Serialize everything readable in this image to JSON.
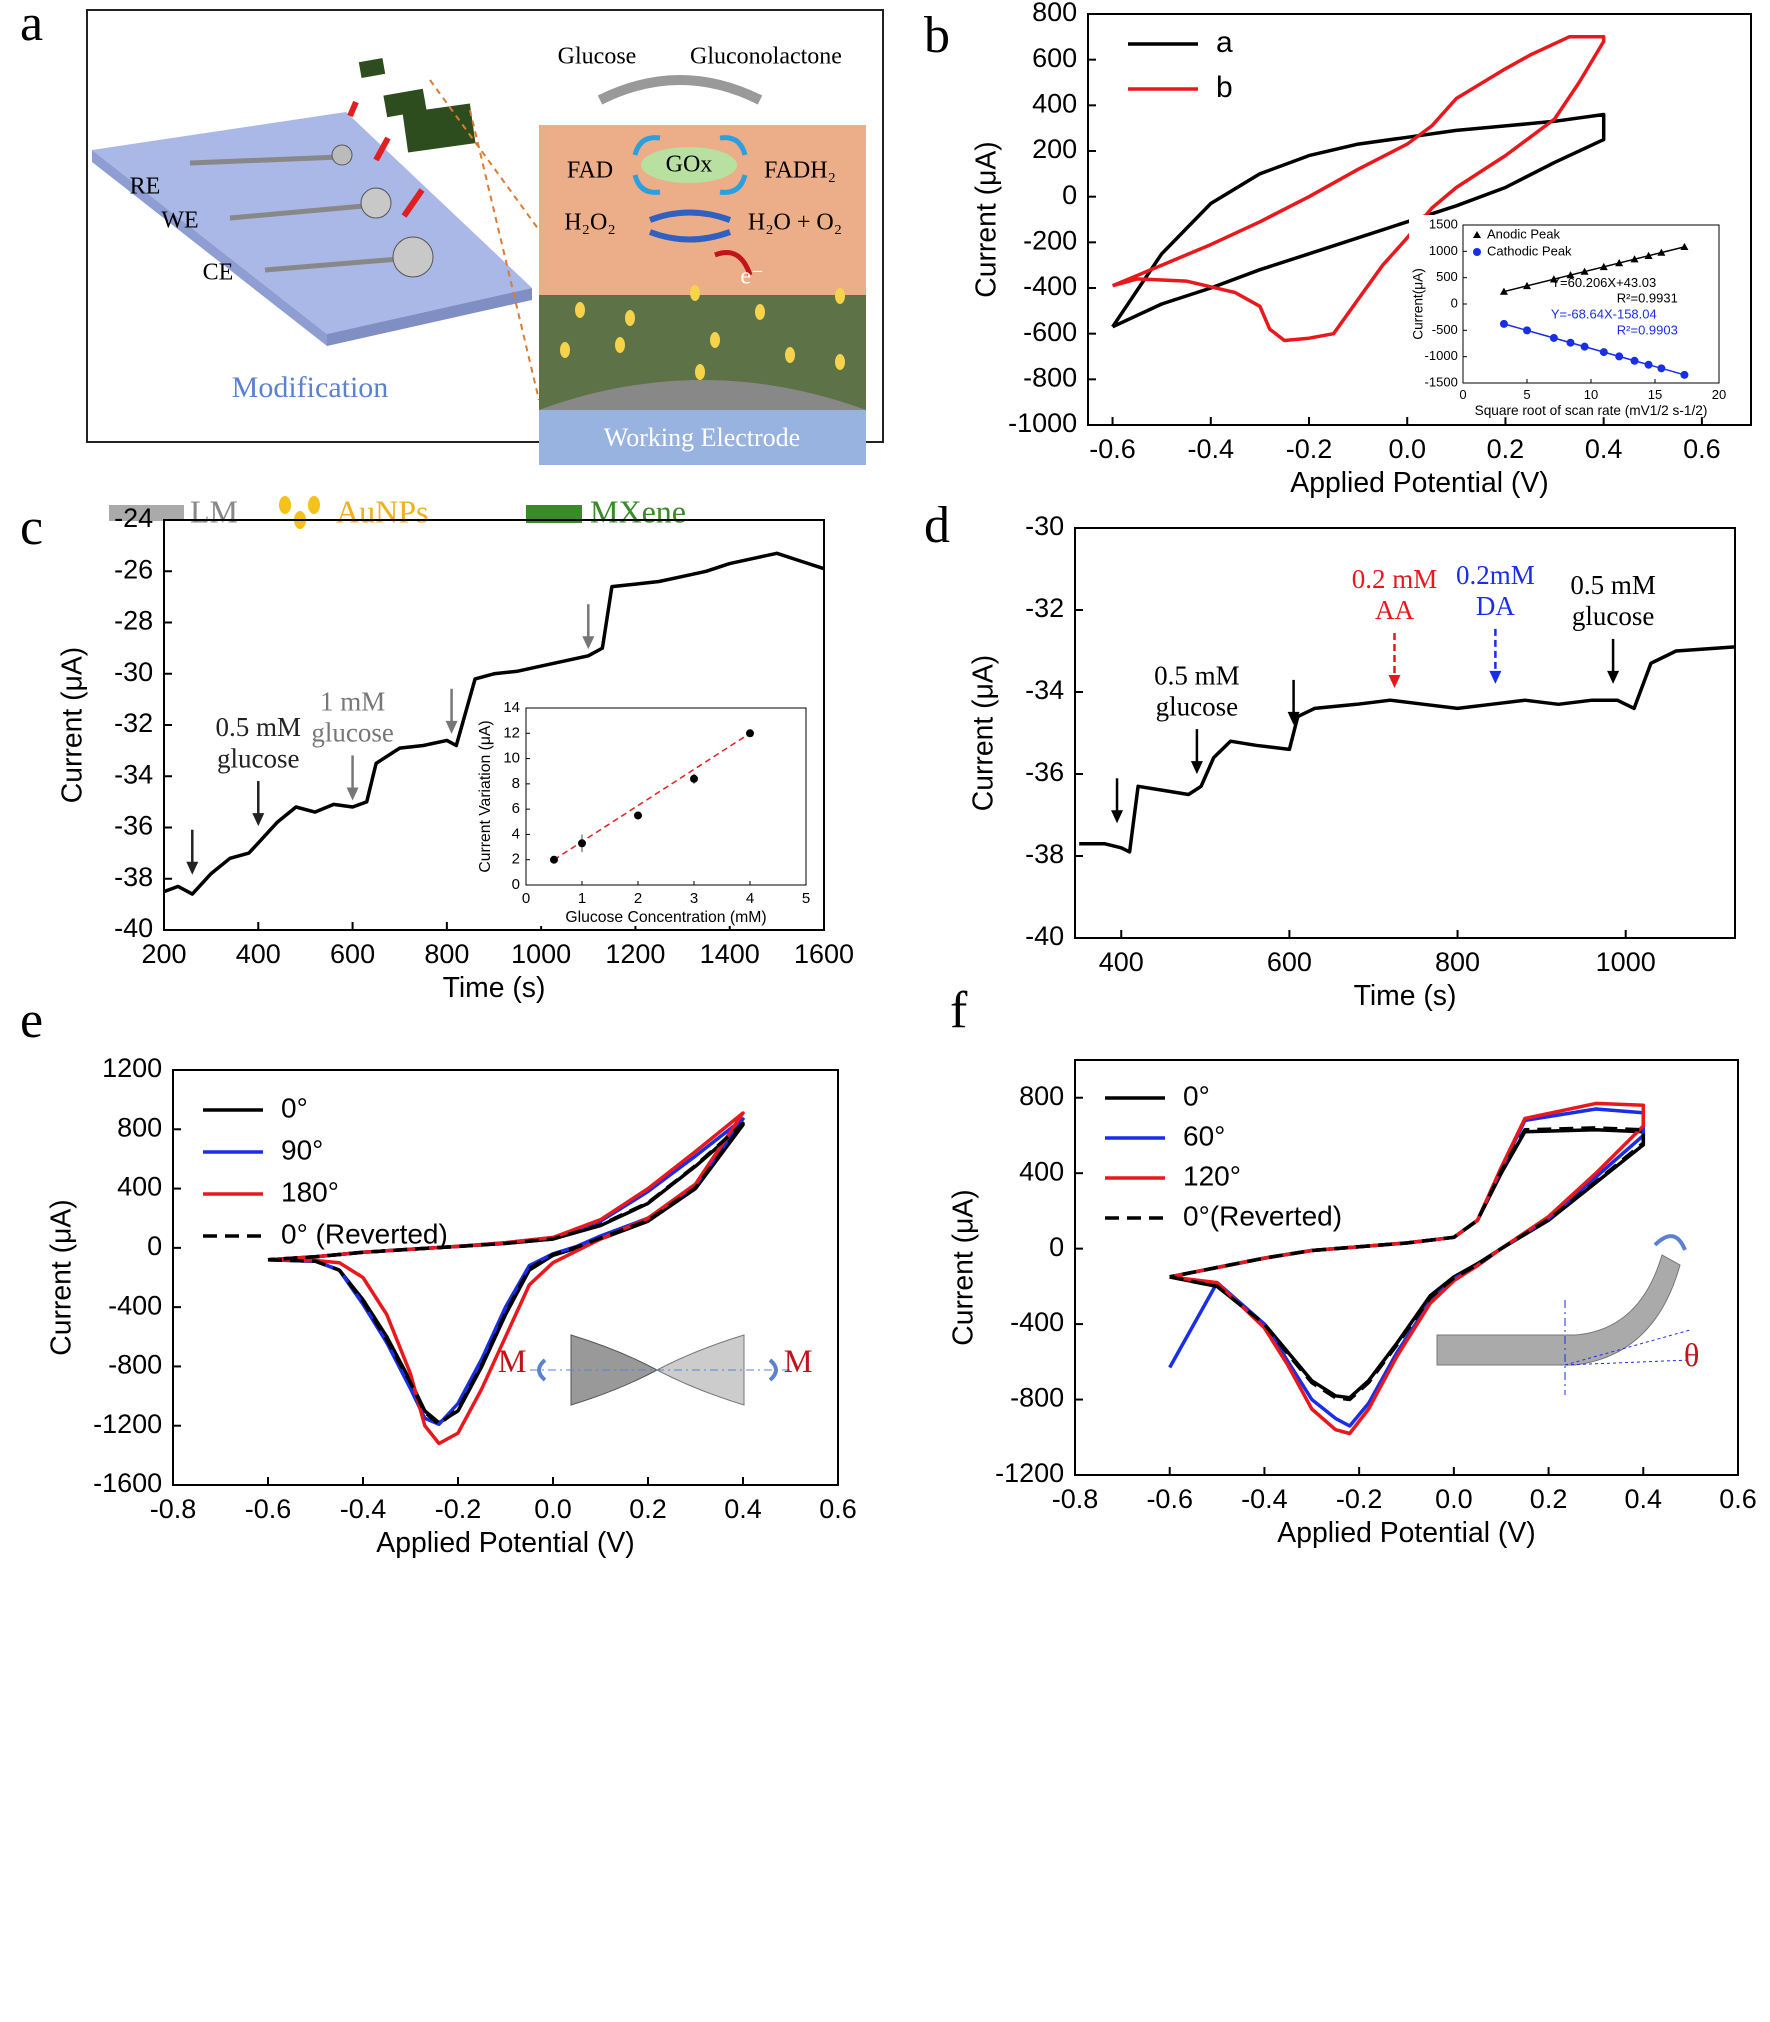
{
  "diagram": {
    "panel_label": "a",
    "reaction": {
      "glucose": "Glucose",
      "product": "Gluconolactone",
      "enzyme": "GOx",
      "fad": "FAD",
      "fadh2": "FADH₂",
      "h2o2": "H₂O₂",
      "h2o_o2": "H₂O + O₂",
      "electron": "e⁻"
    },
    "electrodes": [
      "RE",
      "WE",
      "CE"
    ],
    "step": "Modification",
    "electrode": "Working Electrode",
    "legend": [
      "LM",
      "AuNPs",
      "MXene"
    ]
  },
  "chart_data": [
    {
      "type": "line",
      "panel_label": "b",
      "xlabel": "Applied Potential (V)",
      "ylabel": "Current (μA)",
      "xlim": [
        -0.65,
        0.7
      ],
      "xticks": [
        -0.6,
        -0.4,
        -0.2,
        {
          "value": 0,
          "label": "0.0"
        },
        0.2,
        0.4,
        0.6
      ],
      "ylim": [
        -1000,
        800
      ],
      "yticks": [
        -1000,
        -800,
        -600,
        -400,
        -200,
        0,
        200,
        400,
        600,
        800
      ],
      "legend": "top-left",
      "series": [
        {
          "name": "a",
          "color": "#000000",
          "x": [
            -0.6,
            -0.5,
            -0.4,
            -0.3,
            -0.2,
            -0.1,
            0,
            0.1,
            0.2,
            0.3,
            0.4,
            0.4,
            0.3,
            0.2,
            0.1,
            0,
            -0.1,
            -0.2,
            -0.3,
            -0.4,
            -0.5,
            -0.6
          ],
          "values": [
            -570,
            -250,
            -30,
            100,
            180,
            230,
            260,
            290,
            310,
            330,
            360,
            250,
            150,
            40,
            -40,
            -110,
            -180,
            -250,
            -320,
            -400,
            -470,
            -570
          ]
        },
        {
          "name": "b",
          "color": "#e8181c",
          "x": [
            -0.6,
            -0.55,
            -0.45,
            -0.35,
            -0.3,
            -0.28,
            -0.25,
            -0.2,
            -0.15,
            -0.1,
            -0.05,
            0,
            0.05,
            0.1,
            0.2,
            0.3,
            0.35,
            0.4,
            0.4,
            0.33,
            0.25,
            0.2,
            0.1,
            0.05,
            0,
            -0.1,
            -0.2,
            -0.3,
            -0.4,
            -0.5,
            -0.6
          ],
          "values": [
            -390,
            -360,
            -370,
            -420,
            -480,
            -580,
            -630,
            -620,
            -600,
            -450,
            -300,
            -180,
            -50,
            40,
            180,
            340,
            500,
            680,
            700,
            700,
            620,
            560,
            430,
            310,
            230,
            120,
            0,
            -110,
            -210,
            -300,
            -390
          ]
        }
      ]
    },
    {
      "type": "scatter",
      "xlabel": "Square root of scan rate (mV1/2 s-1/2)",
      "ylabel": "Current(μA)",
      "xlim": [
        0,
        20
      ],
      "xticks": [
        0,
        5,
        10,
        15,
        20
      ],
      "ylim": [
        -1500,
        1500
      ],
      "yticks": [
        -1500,
        -1000,
        -500,
        0,
        500,
        1000,
        1500
      ],
      "legend": "top-left",
      "fit_line": {
        "style": "solid"
      },
      "x": [
        3.2,
        5,
        7.1,
        8.4,
        9.5,
        11,
        12.2,
        13.4,
        14.5,
        15.5,
        17.3
      ],
      "series": [
        {
          "name": "Anodic Peak",
          "color": "#000000",
          "marker": "triangle",
          "values": [
            236,
            344,
            470,
            549,
            615,
            705,
            778,
            850,
            916,
            976,
            1085
          ]
        },
        {
          "name": "Cathodic Peak",
          "color": "#1a2ee8",
          "marker": "circle",
          "values": [
            -378,
            -501,
            -645,
            -735,
            -810,
            -913,
            -995,
            -1078,
            -1153,
            -1222,
            -1345
          ]
        }
      ],
      "annotations": [
        {
          "text": "Y=60.206X+43.03",
          "color": "#000000"
        },
        {
          "text": "R²=0.9931",
          "color": "#000000"
        },
        {
          "text": "Y=-68.64X-158.04",
          "color": "#1a2ee8"
        },
        {
          "text": "R²=0.9903",
          "color": "#1a2ee8"
        }
      ]
    },
    {
      "type": "line",
      "panel_label": "c",
      "xlabel": "Time (s)",
      "ylabel": "Current (μA)",
      "xlim": [
        200,
        1600
      ],
      "xticks": [
        200,
        400,
        600,
        800,
        1000,
        1200,
        1400,
        1600
      ],
      "ylim": [
        -40,
        -24
      ],
      "yticks": [
        -40,
        -38,
        -36,
        -34,
        -32,
        -30,
        -28,
        -26,
        -24
      ],
      "x": [
        200,
        230,
        260,
        300,
        340,
        380,
        400,
        440,
        480,
        520,
        560,
        600,
        630,
        650,
        700,
        750,
        800,
        820,
        840,
        860,
        900,
        950,
        1000,
        1050,
        1100,
        1130,
        1150,
        1200,
        1250,
        1300,
        1350,
        1400,
        1450,
        1500,
        1550,
        1600
      ],
      "series": [
        {
          "color": "#000000",
          "values": [
            -38.5,
            -38.3,
            -38.6,
            -37.8,
            -37.2,
            -37,
            -36.6,
            -35.8,
            -35.2,
            -35.4,
            -35.1,
            -35.2,
            -35,
            -33.5,
            -32.9,
            -32.8,
            -32.6,
            -32.8,
            -31.5,
            -30.2,
            -30,
            -29.9,
            -29.7,
            -29.5,
            -29.3,
            -29,
            -26.6,
            -26.5,
            -26.4,
            -26.2,
            -26,
            -25.7,
            -25.5,
            -25.3,
            -25.6,
            -25.9
          ]
        }
      ],
      "arrows": [
        {
          "x": 260,
          "y": -38,
          "color": "#222222"
        },
        {
          "x": 400,
          "y": -36.1,
          "color": "#222222",
          "label": [
            "0.5 mM",
            "glucose"
          ]
        },
        {
          "x": 600,
          "y": -35.1,
          "color": "#777777",
          "label": [
            "1 mM",
            "glucose"
          ]
        },
        {
          "x": 810,
          "y": -32.5,
          "color": "#777777"
        },
        {
          "x": 1100,
          "y": -29.2,
          "color": "#777777"
        }
      ]
    },
    {
      "type": "scatter",
      "xlabel": "Glucose Concentration (mM)",
      "ylabel": "Current Variation (μA)",
      "xlim": [
        0,
        5
      ],
      "xticks": [
        0,
        1,
        2,
        3,
        4,
        5
      ],
      "ylim": [
        0,
        14
      ],
      "yticks": [
        0,
        2,
        4,
        6,
        8,
        10,
        12,
        14
      ],
      "fit_line": {
        "color": "#e02020",
        "style": "dashed"
      },
      "x": [
        0.5,
        1,
        2,
        3,
        4
      ],
      "series": [
        {
          "color": "#000000",
          "marker": "circle",
          "values": [
            2,
            3.3,
            5.5,
            8.4,
            12
          ],
          "errors": [
            0.3,
            0.7,
            0.1,
            0.4,
            0.1
          ]
        }
      ]
    },
    {
      "type": "line",
      "panel_label": "d",
      "xlabel": "Time (s)",
      "ylabel": "Current (μA)",
      "xlim": [
        345,
        1130
      ],
      "xticks": [
        400,
        600,
        800,
        1000
      ],
      "ylim": [
        -40,
        -30
      ],
      "yticks": [
        -40,
        -38,
        -36,
        -34,
        -32,
        -30
      ],
      "x": [
        350,
        380,
        400,
        410,
        420,
        450,
        480,
        495,
        510,
        530,
        560,
        600,
        610,
        630,
        680,
        720,
        760,
        800,
        840,
        880,
        920,
        960,
        990,
        1010,
        1030,
        1060,
        1130
      ],
      "series": [
        {
          "color": "#000000",
          "values": [
            -37.7,
            -37.7,
            -37.8,
            -37.9,
            -36.3,
            -36.4,
            -36.5,
            -36.3,
            -35.6,
            -35.2,
            -35.3,
            -35.4,
            -34.6,
            -34.4,
            -34.3,
            -34.2,
            -34.3,
            -34.4,
            -34.3,
            -34.2,
            -34.3,
            -34.2,
            -34.2,
            -34.4,
            -33.3,
            -33,
            -32.9
          ]
        }
      ],
      "arrows": [
        {
          "x": 395,
          "y": -37.3,
          "color": "#000000"
        },
        {
          "x": 490,
          "y": -36.1,
          "color": "#000000",
          "label": [
            "0.5 mM",
            "glucose"
          ]
        },
        {
          "x": 605,
          "y": -34.9,
          "color": "#000000"
        },
        {
          "x": 725,
          "y": -34,
          "color": "#e8181c",
          "style": "dashed",
          "label": [
            "0.2 mM",
            "AA"
          ]
        },
        {
          "x": 845,
          "y": -33.9,
          "color": "#1a2ee8",
          "style": "dashed",
          "label": [
            "0.2mM",
            "DA"
          ]
        },
        {
          "x": 985,
          "y": -33.9,
          "color": "#000000",
          "label": [
            "0.5 mM",
            "glucose"
          ]
        }
      ]
    },
    {
      "type": "line",
      "panel_label": "e",
      "xlabel": "Applied Potential (V)",
      "ylabel": "Current (μA)",
      "xlim": [
        -0.8,
        0.6
      ],
      "xticks": [
        -0.8,
        -0.6,
        -0.4,
        -0.2,
        {
          "value": 0,
          "label": "0.0"
        },
        0.2,
        0.4,
        0.6
      ],
      "ylim": [
        -1600,
        1200
      ],
      "yticks": [
        -1600,
        -1200,
        -800,
        -400,
        0,
        400,
        800,
        1200
      ],
      "legend": "top-left",
      "x": [
        -0.6,
        -0.5,
        -0.45,
        -0.4,
        -0.35,
        -0.3,
        -0.27,
        -0.24,
        -0.2,
        -0.15,
        -0.1,
        -0.05,
        0,
        0.05,
        0.1,
        0.2,
        0.3,
        0.4,
        0.4,
        0.3,
        0.2,
        0.1,
        0,
        -0.1,
        -0.2,
        -0.3,
        -0.4,
        -0.5,
        -0.6
      ],
      "series": [
        {
          "name": "0°",
          "color": "#000000",
          "values": [
            -80,
            -90,
            -150,
            -350,
            -600,
            -900,
            -1100,
            -1180,
            -1100,
            -800,
            -450,
            -150,
            -50,
            0,
            60,
            180,
            400,
            830,
            830,
            550,
            300,
            150,
            60,
            30,
            10,
            -10,
            -30,
            -60,
            -80
          ]
        },
        {
          "name": "90°",
          "color": "#1a2ee8",
          "values": [
            -80,
            -90,
            -150,
            -380,
            -640,
            -950,
            -1150,
            -1190,
            -1050,
            -750,
            -400,
            -120,
            -40,
            10,
            80,
            200,
            420,
            870,
            870,
            620,
            380,
            180,
            70,
            35,
            10,
            -10,
            -30,
            -60,
            -80
          ]
        },
        {
          "name": "180°",
          "color": "#e8181c",
          "values": [
            -80,
            -85,
            -100,
            -200,
            -450,
            -850,
            -1200,
            -1320,
            -1250,
            -950,
            -600,
            -250,
            -100,
            -20,
            60,
            200,
            430,
            910,
            910,
            650,
            400,
            190,
            70,
            35,
            10,
            -10,
            -30,
            -60,
            -80
          ]
        },
        {
          "name": "0° (Reverted)",
          "color": "#000000",
          "style": "dashed",
          "values": [
            -80,
            -90,
            -150,
            -360,
            -620,
            -910,
            -1110,
            -1190,
            -1090,
            -790,
            -440,
            -140,
            -45,
            5,
            65,
            185,
            405,
            840,
            840,
            555,
            305,
            155,
            60,
            30,
            10,
            -10,
            -30,
            -60,
            -80
          ]
        }
      ],
      "annotations": [
        {
          "text": "M",
          "color": "#c0141a"
        },
        {
          "text": "M",
          "color": "#c0141a"
        }
      ]
    },
    {
      "type": "line",
      "panel_label": "f",
      "xlabel": "Applied Potential (V)",
      "ylabel": "Current (μA)",
      "xlim": [
        -0.8,
        0.6
      ],
      "xticks": [
        -0.8,
        -0.6,
        -0.4,
        -0.2,
        {
          "value": 0,
          "label": "0.0"
        },
        0.2,
        0.4,
        0.6
      ],
      "ylim": [
        -1200,
        1000
      ],
      "yticks": [
        -1200,
        -800,
        -400,
        0,
        400,
        800
      ],
      "legend": "top-left",
      "x": [
        -0.6,
        -0.5,
        -0.4,
        -0.35,
        -0.3,
        -0.25,
        -0.22,
        -0.18,
        -0.12,
        -0.05,
        0,
        0.05,
        0.1,
        0.2,
        0.3,
        0.4,
        0.4,
        0.3,
        0.15,
        0.1,
        0.05,
        0,
        -0.1,
        -0.2,
        -0.3,
        -0.4,
        -0.5,
        -0.6
      ],
      "series": [
        {
          "name": "0°",
          "color": "#000000",
          "values": [
            -150,
            -200,
            -400,
            -550,
            -700,
            -780,
            -790,
            -700,
            -500,
            -250,
            -150,
            -80,
            0,
            150,
            350,
            550,
            620,
            630,
            620,
            400,
            150,
            60,
            30,
            10,
            -10,
            -50,
            -100,
            -150
          ]
        },
        {
          "name": "60°",
          "color": "#1a2ee8",
          "values": [
            -630,
            -180,
            -400,
            -600,
            -800,
            -900,
            -940,
            -820,
            -550,
            -280,
            -160,
            -90,
            0,
            160,
            380,
            600,
            720,
            740,
            680,
            420,
            150,
            60,
            30,
            10,
            -10,
            -50,
            -100,
            -150
          ]
        },
        {
          "name": "120°",
          "color": "#e8181c",
          "values": [
            -150,
            -180,
            -420,
            -620,
            -850,
            -960,
            -980,
            -850,
            -570,
            -290,
            -170,
            -90,
            0,
            170,
            400,
            650,
            760,
            770,
            690,
            430,
            150,
            60,
            30,
            10,
            -10,
            -50,
            -100,
            -150
          ]
        },
        {
          "name": "0°(Reverted)",
          "color": "#000000",
          "style": "dashed",
          "values": [
            -150,
            -200,
            -400,
            -560,
            -710,
            -790,
            -800,
            -710,
            -510,
            -260,
            -155,
            -85,
            0,
            155,
            355,
            560,
            630,
            640,
            630,
            410,
            150,
            60,
            30,
            10,
            -10,
            -50,
            -100,
            -150
          ]
        }
      ],
      "annotations": [
        {
          "text": "θ",
          "color": "#c0141a"
        }
      ]
    }
  ]
}
